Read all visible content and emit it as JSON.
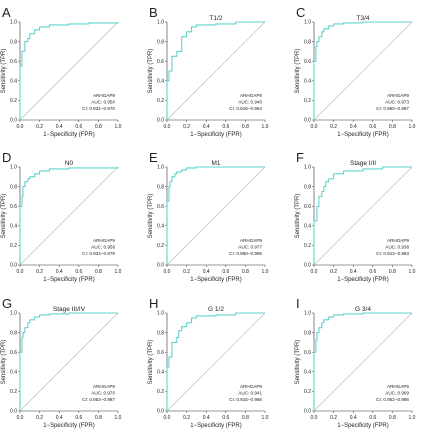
{
  "style": {
    "roc_color": "#5fd3cc",
    "diagonal_color": "#b3b3b3",
    "axis_color": "#333333",
    "text_color": "#222222"
  },
  "axes": {
    "xlabel": "1−Specificity (FPR)",
    "ylabel": "Sensitivity (TPR)",
    "ticks": [
      "0.0",
      "0.2",
      "0.4",
      "0.6",
      "0.8",
      "1.0"
    ]
  },
  "chart_data": [
    {
      "type": "line",
      "panel": "A",
      "title": "",
      "legend": {
        "marker": "ARHGAP9",
        "auc": "AUC: 0.950",
        "ci": "CI: 0.931−0.970"
      },
      "xlim": [
        0,
        1
      ],
      "ylim": [
        0,
        1
      ],
      "xlabel": "1−Specificity (FPR)",
      "ylabel": "Sensitivity (TPR)",
      "series": [
        {
          "x": [
            0,
            0,
            0.02,
            0.02,
            0.05,
            0.05,
            0.08,
            0.1,
            0.1,
            0.15,
            0.2,
            0.3,
            0.5,
            0.7,
            1.0
          ],
          "y": [
            0,
            0.55,
            0.6,
            0.7,
            0.75,
            0.8,
            0.83,
            0.85,
            0.88,
            0.92,
            0.95,
            0.97,
            0.98,
            0.99,
            1.0
          ]
        }
      ]
    },
    {
      "type": "line",
      "panel": "B",
      "title": "T1/2",
      "legend": {
        "marker": "ARHGAP9",
        "auc": "AUC: 0.940",
        "ci": "CI: 0.916−0.964"
      },
      "xlim": [
        0,
        1
      ],
      "ylim": [
        0,
        1
      ],
      "xlabel": "1−Specificity (FPR)",
      "ylabel": "Sensitivity (TPR)",
      "series": [
        {
          "x": [
            0,
            0,
            0.02,
            0.05,
            0.05,
            0.1,
            0.15,
            0.15,
            0.2,
            0.25,
            0.3,
            0.5,
            0.7,
            1.0
          ],
          "y": [
            0,
            0.4,
            0.5,
            0.6,
            0.65,
            0.7,
            0.8,
            0.85,
            0.9,
            0.95,
            0.97,
            0.98,
            1.0,
            1.0
          ]
        }
      ]
    },
    {
      "type": "line",
      "panel": "C",
      "title": "T3/4",
      "legend": {
        "marker": "ARHGAP9",
        "auc": "AUC: 0.973",
        "ci": "CI: 0.960−0.987"
      },
      "xlim": [
        0,
        1
      ],
      "ylim": [
        0,
        1
      ],
      "xlabel": "1−Specificity (FPR)",
      "ylabel": "Sensitivity (TPR)",
      "series": [
        {
          "x": [
            0,
            0,
            0.02,
            0.03,
            0.05,
            0.08,
            0.1,
            0.15,
            0.2,
            0.3,
            0.5,
            1.0
          ],
          "y": [
            0,
            0.6,
            0.75,
            0.8,
            0.85,
            0.9,
            0.93,
            0.96,
            0.98,
            0.99,
            1.0,
            1.0
          ]
        }
      ]
    },
    {
      "type": "line",
      "panel": "D",
      "title": "N0",
      "legend": {
        "marker": "ARHGAP9",
        "auc": "AUC: 0.956",
        "ci": "CI: 0.934−0.978"
      },
      "xlim": [
        0,
        1
      ],
      "ylim": [
        0,
        1
      ],
      "xlabel": "1−Specificity (FPR)",
      "ylabel": "Sensitivity (TPR)",
      "series": [
        {
          "x": [
            0,
            0,
            0.02,
            0.03,
            0.05,
            0.08,
            0.1,
            0.15,
            0.2,
            0.3,
            0.5,
            1.0
          ],
          "y": [
            0,
            0.6,
            0.7,
            0.8,
            0.85,
            0.88,
            0.9,
            0.93,
            0.96,
            0.98,
            0.99,
            1.0
          ]
        }
      ]
    },
    {
      "type": "line",
      "panel": "E",
      "title": "M1",
      "legend": {
        "marker": "ARHGAP9",
        "auc": "AUC: 0.977",
        "ci": "CI: 0.960−0.995"
      },
      "xlim": [
        0,
        1
      ],
      "ylim": [
        0,
        1
      ],
      "xlabel": "1−Specificity (FPR)",
      "ylabel": "Sensitivity (TPR)",
      "series": [
        {
          "x": [
            0,
            0,
            0.02,
            0.03,
            0.05,
            0.08,
            0.1,
            0.15,
            0.2,
            0.3,
            1.0
          ],
          "y": [
            0,
            0.65,
            0.8,
            0.85,
            0.9,
            0.93,
            0.95,
            0.97,
            0.99,
            1.0,
            1.0
          ]
        }
      ]
    },
    {
      "type": "line",
      "panel": "F",
      "title": "Stage I/II",
      "legend": {
        "marker": "ARHGAP9",
        "auc": "AUC: 0.938",
        "ci": "CI: 0.914−0.963"
      },
      "xlim": [
        0,
        1
      ],
      "ylim": [
        0,
        1
      ],
      "xlabel": "1−Specificity (FPR)",
      "ylabel": "Sensitivity (TPR)",
      "series": [
        {
          "x": [
            0,
            0,
            0.03,
            0.05,
            0.08,
            0.1,
            0.12,
            0.15,
            0.2,
            0.3,
            0.5,
            0.7,
            1.0
          ],
          "y": [
            0,
            0.45,
            0.6,
            0.7,
            0.75,
            0.8,
            0.85,
            0.88,
            0.93,
            0.96,
            0.98,
            1.0,
            1.0
          ]
        }
      ]
    },
    {
      "type": "line",
      "panel": "G",
      "title": "Stage III/IV",
      "legend": {
        "marker": "ARHGAP9",
        "auc": "AUC: 0.970",
        "ci": "CI: 0.953−0.987"
      },
      "xlim": [
        0,
        1
      ],
      "ylim": [
        0,
        1
      ],
      "xlabel": "1−Specificity (FPR)",
      "ylabel": "Sensitivity (TPR)",
      "series": [
        {
          "x": [
            0,
            0,
            0.02,
            0.03,
            0.05,
            0.08,
            0.1,
            0.15,
            0.2,
            0.3,
            0.5,
            1.0
          ],
          "y": [
            0,
            0.6,
            0.75,
            0.8,
            0.85,
            0.9,
            0.93,
            0.96,
            0.98,
            0.99,
            1.0,
            1.0
          ]
        }
      ]
    },
    {
      "type": "line",
      "panel": "H",
      "title": "G 1/2",
      "legend": {
        "marker": "ARHGAP9",
        "auc": "AUC: 0.941",
        "ci": "CI: 0.915−0.966"
      },
      "xlim": [
        0,
        1
      ],
      "ylim": [
        0,
        1
      ],
      "xlabel": "1−Specificity (FPR)",
      "ylabel": "Sensitivity (TPR)",
      "series": [
        {
          "x": [
            0,
            0,
            0.02,
            0.05,
            0.05,
            0.1,
            0.12,
            0.15,
            0.2,
            0.25,
            0.3,
            0.5,
            0.7,
            1.0
          ],
          "y": [
            0,
            0.45,
            0.55,
            0.65,
            0.7,
            0.75,
            0.82,
            0.86,
            0.9,
            0.95,
            0.97,
            0.98,
            1.0,
            1.0
          ]
        }
      ]
    },
    {
      "type": "line",
      "panel": "I",
      "title": "G 3/4",
      "legend": {
        "marker": "ARHGAP9",
        "auc": "AUC: 0.969",
        "ci": "CI: 0.952−0.986"
      },
      "xlim": [
        0,
        1
      ],
      "ylim": [
        0,
        1
      ],
      "xlabel": "1−Specificity (FPR)",
      "ylabel": "Sensitivity (TPR)",
      "series": [
        {
          "x": [
            0,
            0,
            0.02,
            0.03,
            0.05,
            0.08,
            0.1,
            0.15,
            0.2,
            0.3,
            0.5,
            1.0
          ],
          "y": [
            0,
            0.6,
            0.72,
            0.8,
            0.85,
            0.9,
            0.93,
            0.96,
            0.98,
            0.99,
            1.0,
            1.0
          ]
        }
      ]
    }
  ]
}
